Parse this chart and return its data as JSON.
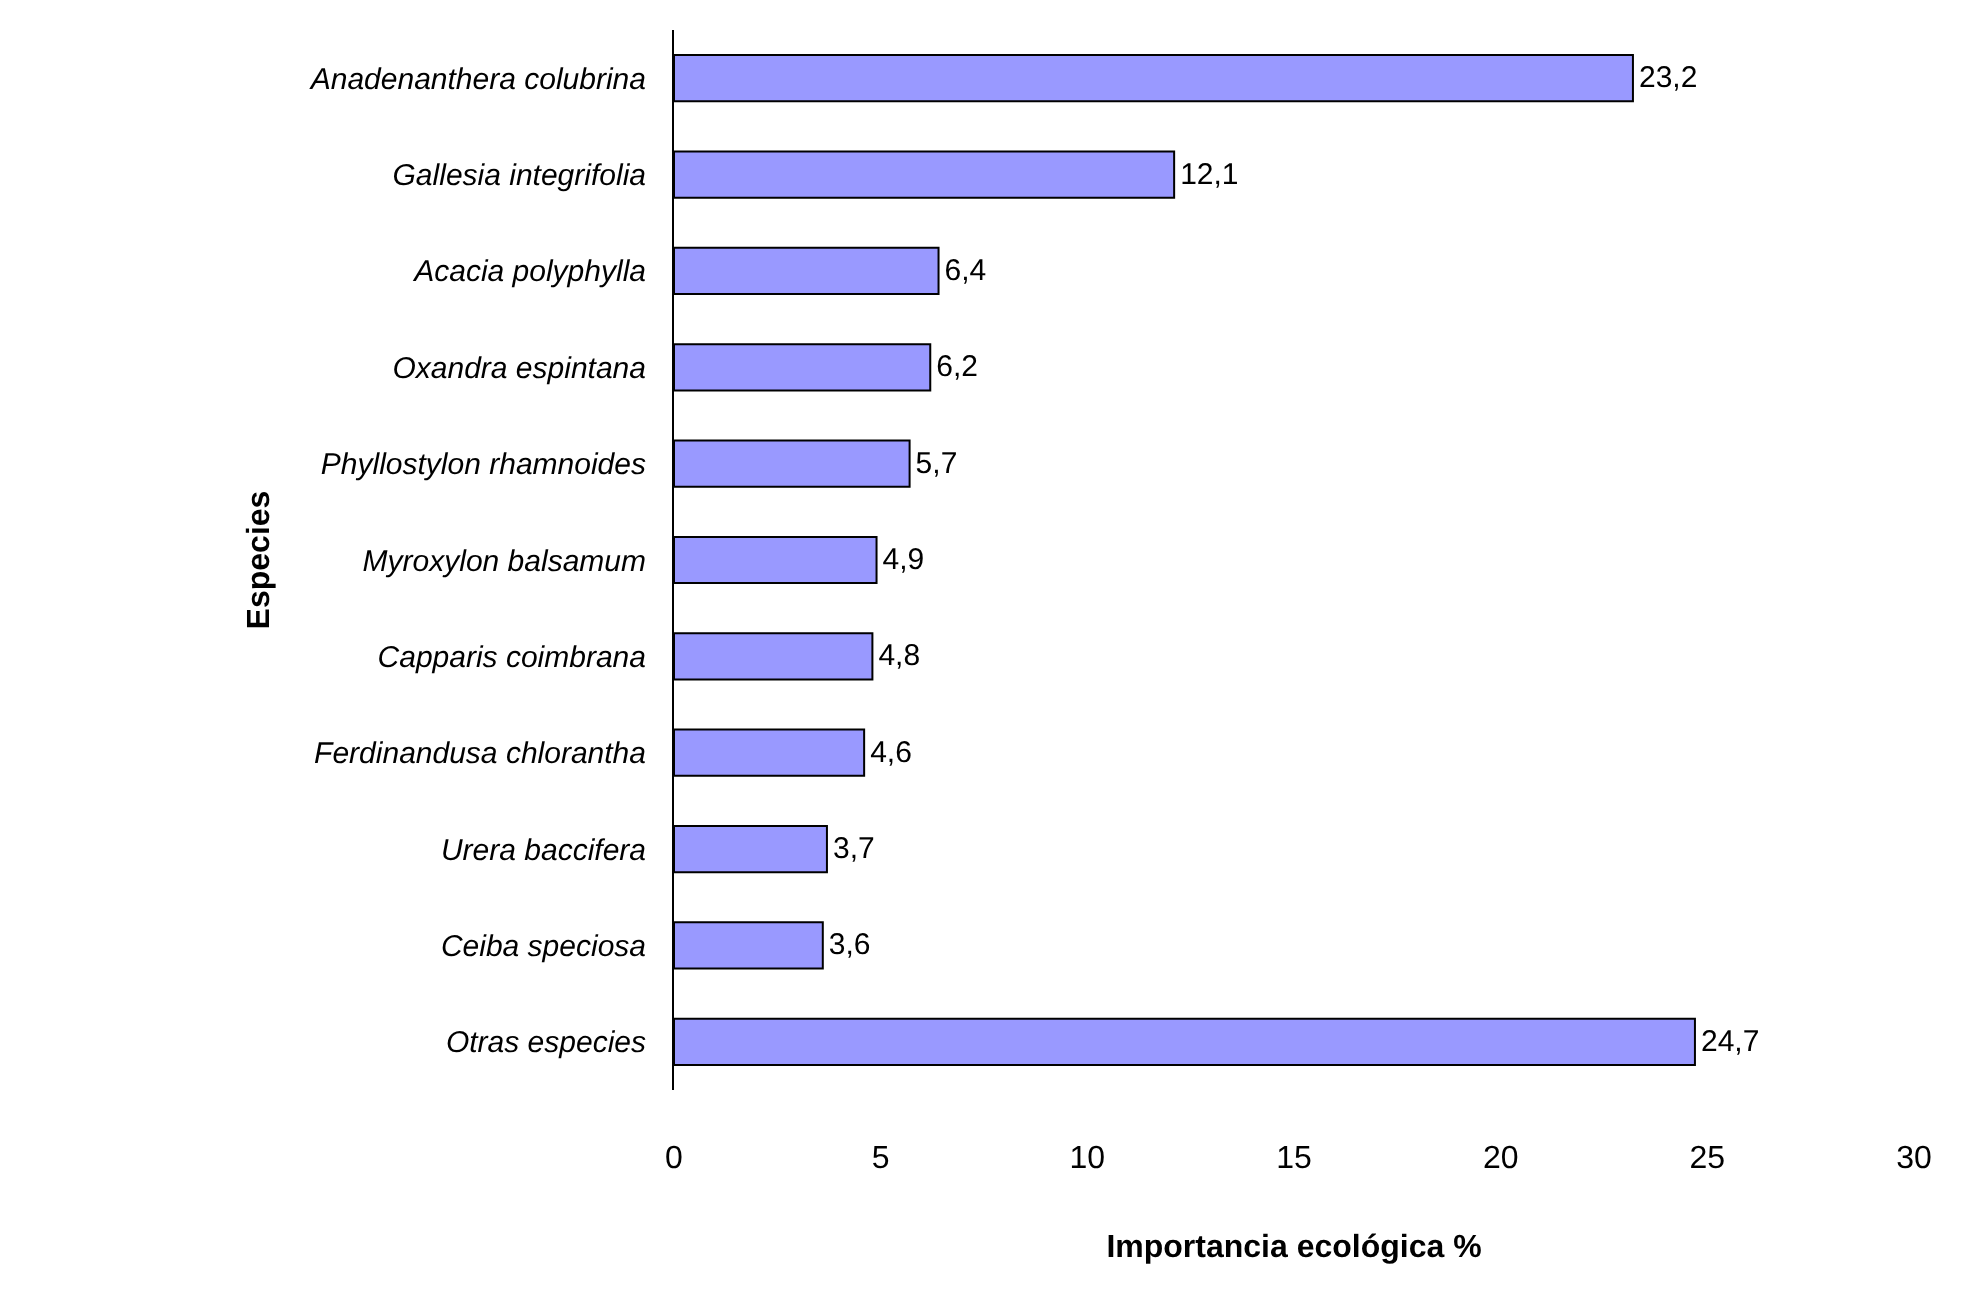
{
  "chart_data": {
    "type": "bar",
    "orientation": "horizontal",
    "xlabel": "Importancia ecológica %",
    "ylabel": "Especies",
    "categories": [
      "Anadenanthera colubrina",
      "Gallesia integrifolia",
      "Acacia polyphylla",
      "Oxandra espintana",
      "Phyllostylon rhamnoides",
      "Myroxylon balsamum",
      "Capparis coimbrana",
      "Ferdinandusa chlorantha",
      "Urera baccifera",
      "Ceiba speciosa",
      "Otras especies"
    ],
    "values": [
      23.2,
      12.1,
      6.4,
      6.2,
      5.7,
      4.9,
      4.8,
      4.6,
      3.7,
      3.6,
      24.7
    ],
    "value_labels": [
      "23,2",
      "12,1",
      "6,4",
      "6,2",
      "5,7",
      "4,9",
      "4,8",
      "4,6",
      "3,7",
      "3,6",
      "24,7"
    ],
    "color": "#9999ff",
    "xlim": [
      0,
      30
    ],
    "xticks": [
      0,
      5,
      10,
      15,
      20,
      25,
      30
    ]
  }
}
